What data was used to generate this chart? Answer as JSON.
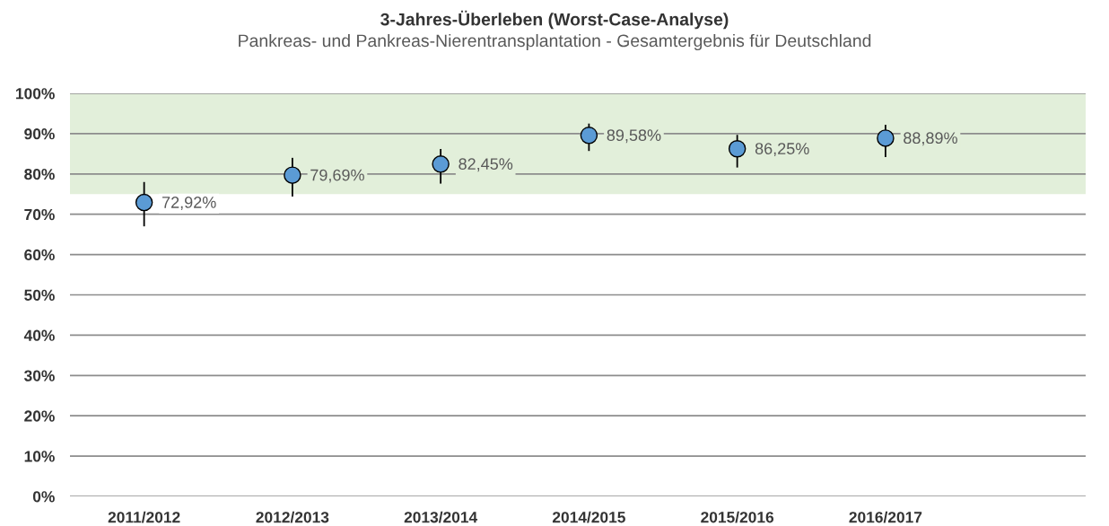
{
  "chart_data": {
    "type": "scatter",
    "title": "3-Jahres-Überleben (Worst-Case-Analyse)",
    "subtitle": "Pankreas- und Pankreas-Nierentransplantation - Gesamtergebnis für Deutschland",
    "categories": [
      "2011/2012",
      "2012/2013",
      "2013/2014",
      "2014/2015",
      "2015/2016",
      "2016/2017"
    ],
    "series": [
      {
        "color": "#5b9bd5",
        "values": [
          72.92,
          79.69,
          82.45,
          89.58,
          86.25,
          88.89
        ],
        "errors": [
          [
            67.0,
            78.0
          ],
          [
            74.4,
            84.0
          ],
          [
            77.6,
            86.2
          ],
          [
            85.7,
            92.5
          ],
          [
            81.6,
            89.7
          ],
          [
            84.2,
            92.2
          ]
        ],
        "value_labels": [
          "72,92%",
          "79,69%",
          "82,45%",
          "89,58%",
          "86,25%",
          "88,89%"
        ]
      }
    ],
    "ylim": [
      0,
      100
    ],
    "yticks": [
      {
        "value": 0,
        "label": "0%"
      },
      {
        "value": 10,
        "label": "10%"
      },
      {
        "value": 20,
        "label": "20%"
      },
      {
        "value": 30,
        "label": "30%"
      },
      {
        "value": 40,
        "label": "40%"
      },
      {
        "value": 50,
        "label": "50%"
      },
      {
        "value": 60,
        "label": "60%"
      },
      {
        "value": 70,
        "label": "70%"
      },
      {
        "value": 80,
        "label": "80%"
      },
      {
        "value": 90,
        "label": "90%"
      },
      {
        "value": 100,
        "label": "100%"
      }
    ],
    "bands": [
      {
        "axis": "y",
        "from": 75,
        "to": 100,
        "color": "#e2efda"
      }
    ],
    "grid": "y",
    "marker": "circle",
    "legend": false
  }
}
